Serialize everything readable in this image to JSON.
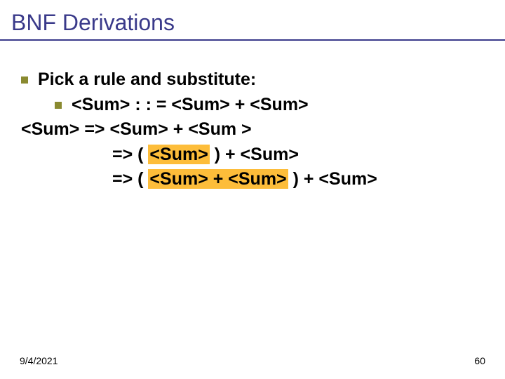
{
  "slide": {
    "title": "BNF Derivations",
    "title_color": "#3a3a8a",
    "underline_color": "#3a3a8a",
    "bullet_color": "#8a8a30",
    "highlight_color": "#fdbd3a",
    "background_color": "#ffffff",
    "title_fontsize": 32,
    "body_fontsize": 25,
    "footer_fontsize": 14,
    "pick_rule_text": "Pick a rule and substitute:",
    "rule_text": "<Sum> : : = <Sum> + <Sum>",
    "deriv1_left": "<Sum> => <Sum> + <Sum >",
    "deriv2_prefix": "=> ( ",
    "deriv2_hl": "<Sum>",
    "deriv2_suffix": " ) + <Sum>",
    "deriv3_prefix": "=> ( ",
    "deriv3_hl": "<Sum> + <Sum>",
    "deriv3_suffix": " ) + <Sum>",
    "footer_date": "9/4/2021",
    "footer_page": "60"
  }
}
